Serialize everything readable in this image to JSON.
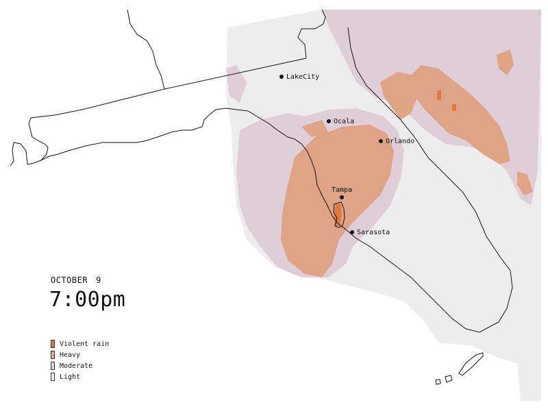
{
  "header": {
    "date_month": "OCTOBER",
    "date_day": "9",
    "time": "7:00pm"
  },
  "cities": [
    {
      "id": "lake-city",
      "name": "LakeCity"
    },
    {
      "id": "ocala",
      "name": "Ocala"
    },
    {
      "id": "orlando",
      "name": "Orlando"
    },
    {
      "id": "tampa",
      "name": "Tampa"
    },
    {
      "id": "sarasota",
      "name": "Sarasota"
    }
  ],
  "legend": [
    {
      "label": "Violent rain",
      "color": "#e07a40"
    },
    {
      "label": "Heavy",
      "color": "#dfa385"
    },
    {
      "label": "Moderate",
      "color": "#dfcdd8"
    },
    {
      "label": "Light",
      "color": "#ededed"
    }
  ]
}
